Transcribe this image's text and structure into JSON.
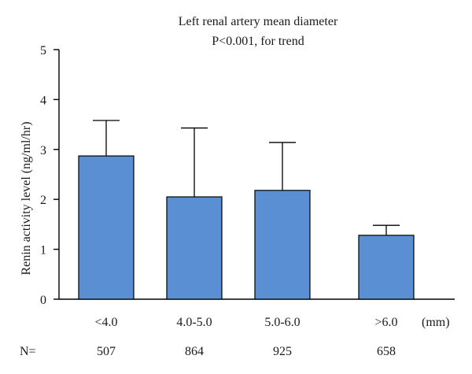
{
  "chart_data": {
    "type": "bar",
    "title": "Left renal artery mean diameter",
    "subtitle": "P<0.001, for trend",
    "ylabel": "Renin activity level (ng/ml/hr)",
    "xunit": "(mm)",
    "categories": [
      "<4.0",
      "4.0-5.0",
      "5.0-6.0",
      ">6.0"
    ],
    "values": [
      2.87,
      2.05,
      2.18,
      1.28
    ],
    "error_upper": [
      3.58,
      3.43,
      3.14,
      1.48
    ],
    "ylim": [
      0,
      5
    ],
    "yticks": [
      "0",
      "1",
      "2",
      "3",
      "4",
      "5"
    ],
    "n_label": "N=",
    "n_values": [
      "507",
      "864",
      "925",
      "658"
    ],
    "grid": false,
    "bar_color": "#5b8fd4"
  }
}
